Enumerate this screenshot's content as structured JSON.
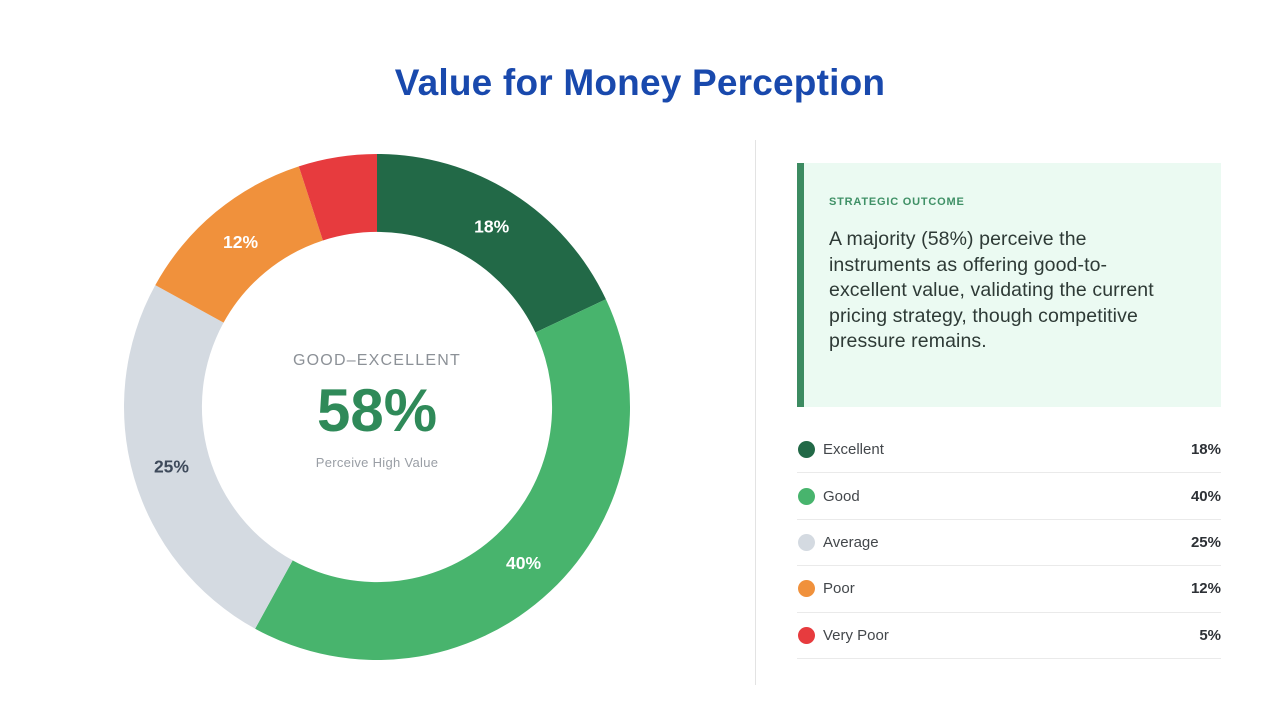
{
  "title": "Value for Money Perception",
  "theme": {
    "title_color": "#1949AD",
    "background": "#FFFFFF",
    "divider_color": "#E3E3E3"
  },
  "chart_data": {
    "type": "pie",
    "variant": "donut",
    "title": "Value for Money Perception",
    "categories": [
      "Excellent",
      "Good",
      "Average",
      "Poor",
      "Very Poor"
    ],
    "values": [
      18,
      40,
      25,
      12,
      5
    ],
    "unit": "%",
    "colors": [
      "#226947",
      "#48B46D",
      "#D4DAE1",
      "#F0913C",
      "#E73B3E"
    ],
    "slice_labels": [
      "18%",
      "40%",
      "25%",
      "12%",
      ""
    ],
    "slice_label_colors": [
      "#FFFFFF",
      "#FFFFFF",
      "#3E4A5B",
      "#FFFFFF",
      "#FFFFFF"
    ],
    "start_angle_deg": 0,
    "direction": "clockwise",
    "inner_radius_ratio": 0.692,
    "legend_position": "right",
    "center_label": {
      "category": "GOOD–EXCELLENT",
      "value": "58%",
      "value_color": "#2F8A59",
      "subtitle": "Perceive High Value"
    }
  },
  "insight_panel": {
    "eyebrow": "STRATEGIC OUTCOME",
    "eyebrow_color": "#3F9066",
    "accent_color": "#3C8B61",
    "background_color": "#EBFAF2",
    "body": "A majority (58%) perceive the instruments as offering good-to-excellent value, validating the current pricing strategy, though competitive pressure remains."
  },
  "legend": {
    "items": [
      {
        "label": "Excellent",
        "value": "18%",
        "color": "#226947"
      },
      {
        "label": "Good",
        "value": "40%",
        "color": "#48B46D"
      },
      {
        "label": "Average",
        "value": "25%",
        "color": "#D4DAE1"
      },
      {
        "label": "Poor",
        "value": "12%",
        "color": "#F0913C"
      },
      {
        "label": "Very Poor",
        "value": "5%",
        "color": "#E73B3E"
      }
    ]
  }
}
